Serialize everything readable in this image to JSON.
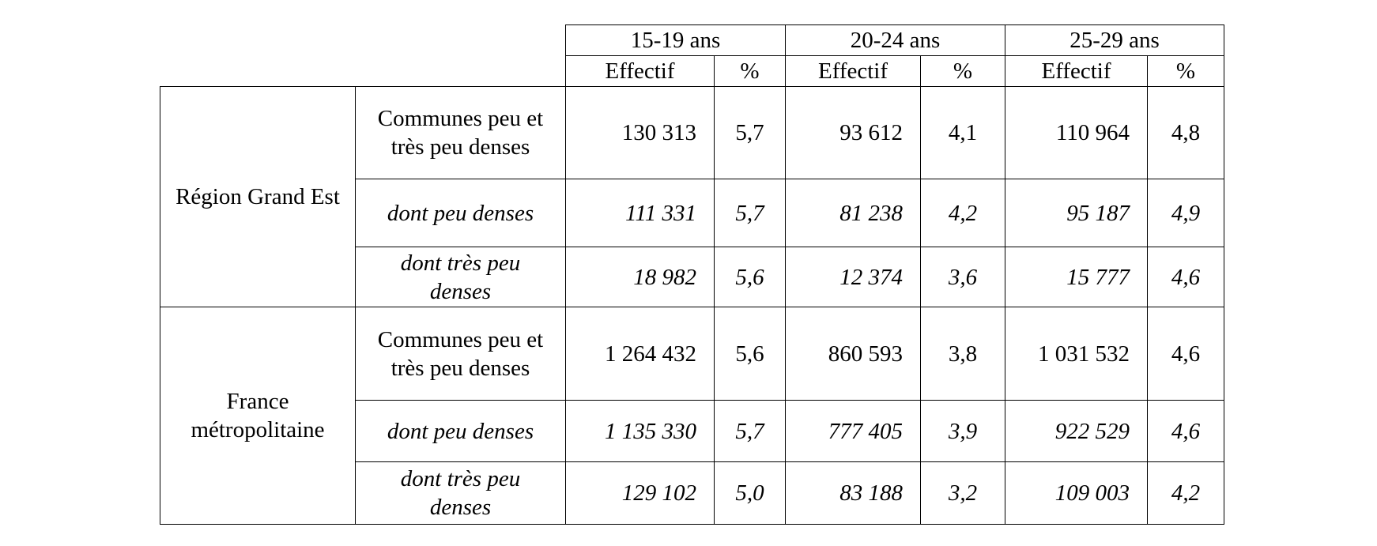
{
  "age_groups": [
    "15-19 ans",
    "20-24 ans",
    "25-29 ans"
  ],
  "sub_headers": {
    "effectif": "Effectif",
    "pct": "%"
  },
  "groups": [
    {
      "label": "Région Grand Est",
      "rows": [
        {
          "label": "Communes peu et très peu denses",
          "italic": false,
          "values": [
            "130 313",
            "5,7",
            "93 612",
            "4,1",
            "110 964",
            "4,8"
          ]
        },
        {
          "label": "dont peu denses",
          "italic": true,
          "values": [
            "111 331",
            "5,7",
            "81 238",
            "4,2",
            "95 187",
            "4,9"
          ]
        },
        {
          "label": "dont très peu denses",
          "italic": true,
          "values": [
            "18 982",
            "5,6",
            "12 374",
            "3,6",
            "15 777",
            "4,6"
          ]
        }
      ]
    },
    {
      "label": "France métropolitaine",
      "rows": [
        {
          "label": "Communes peu et très peu denses",
          "italic": false,
          "values": [
            "1 264 432",
            "5,6",
            "860 593",
            "3,8",
            "1 031 532",
            "4,6"
          ]
        },
        {
          "label": "dont peu denses",
          "italic": true,
          "values": [
            "1 135 330",
            "5,7",
            "777 405",
            "3,9",
            "922 529",
            "4,6"
          ]
        },
        {
          "label": "dont très peu denses",
          "italic": true,
          "values": [
            "129 102",
            "5,0",
            "83 188",
            "3,2",
            "109 003",
            "4,2"
          ]
        }
      ]
    }
  ]
}
